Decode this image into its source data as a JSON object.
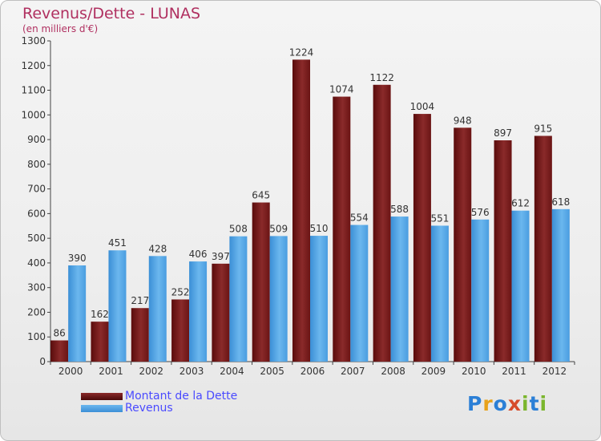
{
  "title": "Revenus/Dette - LUNAS",
  "subtitle": "(en milliers d'€)",
  "legend": {
    "items": [
      {
        "label": "Montant de la Dette",
        "color": "#6b0f0f"
      },
      {
        "label": "Revenus",
        "color": "#4da3e6"
      }
    ]
  },
  "logo": {
    "letters": [
      "P",
      "r",
      "o",
      "x",
      "i",
      "t",
      "i"
    ],
    "colors": [
      "#2b7fd6",
      "#e8a21a",
      "#2b7fd6",
      "#d64b2b",
      "#7bb62d",
      "#2b7fd6",
      "#7bb62d"
    ]
  },
  "chart_data": {
    "type": "bar",
    "categories": [
      "2000",
      "2001",
      "2002",
      "2003",
      "2004",
      "2005",
      "2006",
      "2007",
      "2008",
      "2009",
      "2010",
      "2011",
      "2012"
    ],
    "series": [
      {
        "name": "Montant de la Dette",
        "color": "#7a1a1a",
        "values": [
          86,
          162,
          217,
          252,
          397,
          645,
          1224,
          1074,
          1122,
          1004,
          948,
          897,
          915
        ]
      },
      {
        "name": "Revenus",
        "color": "#4da3e6",
        "values": [
          390,
          451,
          428,
          406,
          508,
          509,
          510,
          554,
          588,
          551,
          576,
          612,
          618
        ]
      }
    ],
    "ylim": [
      0,
      1300
    ],
    "yticks": [
      0,
      100,
      200,
      300,
      400,
      500,
      600,
      700,
      800,
      900,
      1000,
      1100,
      1200,
      1300
    ],
    "grid": false,
    "legend_position": "bottom-left"
  }
}
